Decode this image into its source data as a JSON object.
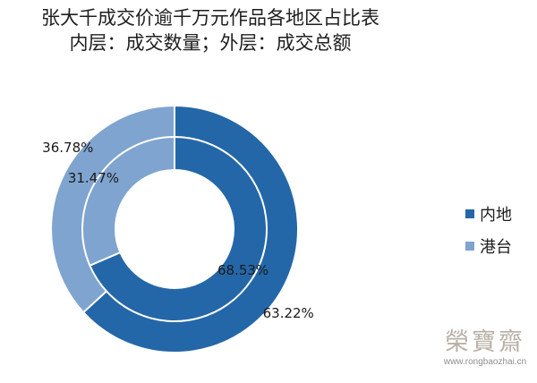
{
  "chart_data": {
    "type": "pie",
    "title": "张大千成交价逾千万元作品各地区占比表",
    "subtitle": "内层：成交数量；外层：成交总额",
    "categories": [
      "内地",
      "港台"
    ],
    "colors": [
      "#2467a8",
      "#7fa4cf"
    ],
    "series": [
      {
        "name": "成交数量",
        "ring": "inner",
        "values": [
          68.53,
          31.47
        ],
        "labels": [
          "68.53%",
          "31.47%"
        ]
      },
      {
        "name": "成交总额",
        "ring": "outer",
        "values": [
          63.22,
          36.78
        ],
        "labels": [
          "63.22%",
          "36.78%"
        ]
      }
    ],
    "legend_position": "right"
  },
  "watermark": {
    "text": "榮寶齋",
    "url": "www.rongbaozhai.cn"
  }
}
